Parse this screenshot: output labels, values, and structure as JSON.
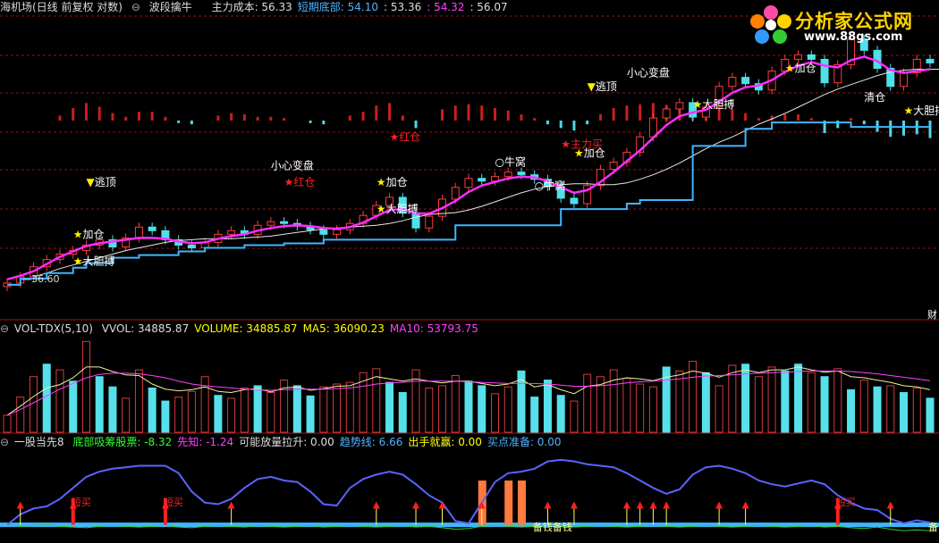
{
  "panel1": {
    "title": "海机场(日线 前复权 对数)",
    "indicator": "波段擒牛",
    "items": [
      {
        "label": "主力成本:",
        "value": "56.33",
        "color": "#dddddd"
      },
      {
        "label": "短期底部:",
        "value": "54.10",
        "color": "#4fb3ff"
      },
      {
        "label": "",
        "value": ": 53.36",
        "color": "#dddddd"
      },
      {
        "label": "",
        "value": ": 54.32",
        "color": "#ff40ff"
      },
      {
        "label": "",
        "value": ": 56.07",
        "color": "#dddddd"
      }
    ],
    "low_label": "36.60",
    "badge": "财"
  },
  "panel2": {
    "title": "VOL-TDX(5,10)",
    "items": [
      {
        "label": "VVOL:",
        "value": "34885.87",
        "color": "#dddddd"
      },
      {
        "label": "VOLUME:",
        "value": "34885.87",
        "color": "#ffff00"
      },
      {
        "label": "MA5:",
        "value": "36090.23",
        "color": "#ffff00"
      },
      {
        "label": "MA10:",
        "value": "53793.75",
        "color": "#ff40ff"
      }
    ]
  },
  "panel3": {
    "title": "一股当先8",
    "items": [
      {
        "label": "底部吸筹股票:",
        "value": "-8.32",
        "color": "#33ff33"
      },
      {
        "label": "先知:",
        "value": "-1.24",
        "color": "#ff40ff"
      },
      {
        "label": "可能放量拉升:",
        "value": "0.00",
        "color": "#dddddd"
      },
      {
        "label": "趋势线:",
        "value": "6.66",
        "color": "#4fb3ff"
      },
      {
        "label": "出手就赢:",
        "value": "0.00",
        "color": "#ffff00"
      },
      {
        "label": "买点准备:",
        "value": "0.00",
        "color": "#4fb3ff"
      }
    ]
  },
  "logo": {
    "name": "分析家公式网",
    "url": "www.88gs.com"
  },
  "chart_data": {
    "type": "line",
    "price": {
      "candles": [
        36.8,
        37.5,
        38.6,
        39.4,
        40.0,
        40.4,
        41.0,
        41.6,
        40.8,
        41.8,
        43.0,
        42.6,
        41.6,
        41.0,
        40.7,
        41.3,
        42.2,
        42.6,
        42.2,
        43.2,
        43.6,
        43.4,
        43.1,
        42.7,
        42.2,
        42.7,
        43.4,
        44.3,
        45.4,
        46.3,
        44.6,
        42.9,
        44.2,
        46.1,
        47.4,
        48.4,
        48.1,
        48.6,
        49.1,
        48.8,
        48.3,
        47.5,
        46.2,
        45.6,
        47.6,
        49.4,
        50.2,
        51.3,
        53.0,
        55.1,
        56.1,
        56.8,
        55.2,
        56.3,
        58.6,
        59.6,
        58.9,
        58.2,
        60.3,
        61.6,
        62.1,
        61.6,
        59.0,
        61.0,
        63.8,
        62.6,
        60.6,
        58.6,
        60.1,
        61.6,
        61.2
      ],
      "ma_magenta": [
        37.2,
        37.6,
        38.1,
        38.9,
        39.7,
        40.3,
        40.9,
        41.2,
        41.4,
        41.6,
        41.8,
        41.8,
        41.7,
        41.4,
        41.2,
        41.3,
        41.7,
        42.0,
        42.2,
        42.6,
        42.9,
        43.1,
        43.2,
        43.1,
        42.9,
        42.8,
        43.0,
        43.5,
        44.2,
        44.9,
        45.0,
        44.5,
        44.5,
        45.1,
        45.9,
        46.9,
        47.6,
        48.0,
        48.4,
        48.6,
        48.5,
        48.1,
        47.4,
        46.8,
        47.1,
        48.0,
        49.1,
        50.3,
        51.5,
        52.9,
        54.3,
        55.3,
        55.7,
        56.0,
        56.9,
        57.9,
        58.5,
        58.7,
        59.3,
        60.2,
        60.9,
        61.3,
        60.9,
        60.7,
        61.5,
        61.9,
        61.4,
        60.4,
        60.1,
        60.3,
        60.5
      ],
      "ma_white": [
        37.5,
        37.9,
        38.4,
        38.8,
        39.2,
        39.6,
        40.0,
        40.4,
        40.7,
        41.0,
        41.3,
        41.5,
        41.6,
        41.7,
        41.7,
        41.7,
        41.8,
        41.9,
        42.0,
        42.2,
        42.4,
        42.6,
        42.8,
        42.9,
        43.0,
        43.1,
        43.2,
        43.4,
        43.7,
        44.1,
        44.4,
        44.5,
        44.6,
        44.9,
        45.3,
        45.8,
        46.3,
        46.8,
        47.2,
        47.5,
        47.7,
        47.8,
        47.8,
        47.7,
        47.7,
        47.9,
        48.3,
        48.8,
        49.4,
        50.1,
        50.9,
        51.7,
        52.4,
        53.0,
        53.7,
        54.4,
        55.0,
        55.6,
        56.3,
        57.0,
        57.7,
        58.3,
        58.8,
        59.3,
        59.8,
        60.2,
        60.4,
        60.5,
        60.5,
        60.5,
        60.5
      ],
      "ma_white_start": 2,
      "bottom_line": [
        36.6,
        37.3,
        37.3,
        37.9,
        37.9,
        38.5,
        39.0,
        39.0,
        39.6,
        39.6,
        39.9,
        39.9,
        39.9,
        40.3,
        40.3,
        40.7,
        40.7,
        40.7,
        41.0,
        41.0,
        41.0,
        41.2,
        41.2,
        41.2,
        41.6,
        41.6,
        41.6,
        41.6,
        41.6,
        41.6,
        41.6,
        41.6,
        41.6,
        41.6,
        43.2,
        43.2,
        43.2,
        43.2,
        43.2,
        43.2,
        43.2,
        43.2,
        45.0,
        45.0,
        45.0,
        45.0,
        45.0,
        45.6,
        46.0,
        46.0,
        46.0,
        46.0,
        52.0,
        52.0,
        52.0,
        52.0,
        53.9,
        53.9,
        54.6,
        54.6,
        54.6,
        54.6,
        54.6,
        54.6,
        54.1,
        54.1,
        54.1,
        54.1,
        54.1,
        54.1,
        54.1
      ],
      "ylim": [
        35.5,
        66
      ]
    },
    "macd_bars": [
      0,
      0,
      0,
      0,
      0.4,
      1,
      1.4,
      1.1,
      0.6,
      0.3,
      0.7,
      0.7,
      0.3,
      -0.2,
      -0.3,
      0,
      0.4,
      0.6,
      0.5,
      0.3,
      0.3,
      0.2,
      0,
      -0.2,
      -0.3,
      0,
      0.4,
      0.7,
      1.2,
      1.4,
      0.4,
      -0.6,
      0,
      0.9,
      1.2,
      1.3,
      1.2,
      1.0,
      0.8,
      0.5,
      0.2,
      -0.3,
      -0.6,
      -0.8,
      -0.3,
      0.5,
      1,
      1.2,
      1.3,
      1.4,
      1.2,
      1.0,
      0.3,
      0.2,
      0.9,
      0.9,
      0.6,
      0.2,
      0.4,
      0.5,
      0.5,
      0.2,
      -1,
      -0.6,
      0.2,
      -0.3,
      -0.9,
      -1.3,
      -1.2,
      -1.1,
      -1.4
    ],
    "volume": {
      "values": [
        30000,
        62000,
        98000,
        120000,
        110000,
        90000,
        160000,
        98000,
        80000,
        60000,
        110000,
        78000,
        55000,
        62000,
        72000,
        98000,
        65000,
        60000,
        78000,
        82000,
        70000,
        92000,
        82000,
        64000,
        80000,
        85000,
        88000,
        105000,
        112000,
        88000,
        70000,
        110000,
        78000,
        82000,
        100000,
        90000,
        82000,
        68000,
        80000,
        108000,
        62000,
        92000,
        65000,
        55000,
        102000,
        98000,
        110000,
        95000,
        85000,
        80000,
        115000,
        108000,
        125000,
        105000,
        82000,
        118000,
        120000,
        98000,
        115000,
        108000,
        120000,
        105000,
        98000,
        112000,
        75000,
        92000,
        80000,
        82000,
        70000,
        78000,
        60000
      ],
      "up": [
        true,
        true,
        true,
        false,
        true,
        false,
        true,
        false,
        false,
        true,
        true,
        false,
        false,
        true,
        true,
        true,
        false,
        true,
        true,
        false,
        true,
        true,
        false,
        false,
        true,
        true,
        true,
        true,
        true,
        false,
        false,
        true,
        true,
        true,
        true,
        false,
        false,
        true,
        true,
        false,
        false,
        false,
        false,
        true,
        true,
        true,
        true,
        true,
        true,
        true,
        false,
        true,
        true,
        false,
        true,
        true,
        false,
        true,
        true,
        false,
        false,
        true,
        false,
        true,
        false,
        true,
        false,
        true,
        false,
        true,
        false
      ],
      "ma_yellow": [
        30000,
        46000,
        63000,
        78000,
        84000,
        96000,
        115000,
        115000,
        107000,
        101000,
        100000,
        85000,
        76000,
        73000,
        75000,
        80000,
        72000,
        70000,
        75000,
        77000,
        71000,
        78000,
        80000,
        74000,
        77000,
        81000,
        82000,
        90000,
        98000,
        94000,
        90000,
        94000,
        90000,
        87000,
        90000,
        90000,
        86000,
        82000,
        85000,
        93000,
        80000,
        84000,
        75000,
        68000,
        81000,
        84000,
        92000,
        96000,
        94000,
        91000,
        97000,
        101000,
        108000,
        104000,
        97000,
        105000,
        110000,
        105000,
        110000,
        110000,
        115000,
        110000,
        106000,
        108000,
        98000,
        96000,
        92000,
        88000,
        82000,
        80000,
        75000
      ],
      "ma_magenta": [
        30000,
        40000,
        52000,
        64000,
        76000,
        86000,
        96000,
        102000,
        104000,
        104000,
        103000,
        100000,
        96000,
        90000,
        85000,
        82000,
        80000,
        78000,
        76000,
        75000,
        74000,
        75000,
        76000,
        76000,
        76000,
        77000,
        78000,
        81000,
        85000,
        87000,
        88000,
        90000,
        90000,
        90000,
        90000,
        89000,
        88000,
        87000,
        86000,
        86000,
        86000,
        85000,
        83000,
        81000,
        81000,
        82000,
        84000,
        87000,
        89000,
        90000,
        92000,
        94000,
        97000,
        99000,
        100000,
        101000,
        103000,
        104000,
        105000,
        106000,
        107000,
        108000,
        108000,
        108000,
        107000,
        105000,
        103000,
        100000,
        97000,
        94000,
        91000
      ],
      "ylim": [
        0,
        170000
      ]
    },
    "oscillator": {
      "blue": [
        0,
        14,
        22,
        25,
        35,
        50,
        65,
        72,
        76,
        78,
        80,
        80,
        80,
        70,
        45,
        30,
        28,
        35,
        50,
        62,
        65,
        60,
        58,
        45,
        28,
        26,
        50,
        62,
        68,
        72,
        68,
        55,
        40,
        30,
        5,
        2,
        30,
        58,
        70,
        72,
        76,
        86,
        88,
        86,
        82,
        80,
        78,
        70,
        60,
        50,
        42,
        48,
        68,
        78,
        80,
        76,
        70,
        60,
        55,
        52,
        56,
        60,
        55,
        40,
        30,
        22,
        20,
        8,
        2,
        6,
        3
      ],
      "green": [
        0,
        -2,
        -1,
        0,
        -2,
        -3,
        -4,
        -2,
        -1,
        -2,
        -3,
        -2,
        -1,
        -3,
        -4,
        -2,
        -1,
        -2,
        -3,
        -1,
        -2,
        -3,
        -2,
        -1,
        -3,
        -2,
        -1,
        -2,
        -3,
        -2,
        -1,
        -3,
        -2,
        -4,
        -6,
        -5,
        -2,
        -1,
        -2,
        -3,
        -2,
        -1,
        -2,
        -3,
        -2,
        -1,
        -2,
        -3,
        -2,
        -1,
        -2,
        -3,
        -2,
        -1,
        -2,
        -3,
        -2,
        -1,
        -2,
        -3,
        -2,
        -1,
        -3,
        -2,
        -4,
        -5,
        -3,
        -6,
        -8,
        -7,
        -8
      ],
      "buy_arrows": [
        1,
        5,
        12,
        17,
        28,
        31,
        33,
        36,
        41,
        43,
        47,
        48,
        49,
        50,
        54,
        56,
        63,
        67
      ],
      "buy_labels": [
        {
          "i": 5,
          "text": "短买"
        },
        {
          "i": 12,
          "text": "短买"
        },
        {
          "i": 63,
          "text": "短买"
        }
      ],
      "orange_bars": [
        36,
        38,
        39
      ],
      "ylim": [
        -15,
        100
      ]
    },
    "price_annotations": [
      {
        "i": 5,
        "v": 41.8,
        "text": "加仓",
        "color": "#ffffff"
      },
      {
        "i": 5,
        "v": 38.8,
        "text": "大胆搏",
        "color": "#ffffff"
      },
      {
        "i": 6,
        "v": 47.6,
        "text": "逃顶",
        "color": "#ffffff"
      },
      {
        "i": 20,
        "v": 49.4,
        "text": "小心变盘",
        "color": "#ffffff"
      },
      {
        "i": 21,
        "v": 47.6,
        "text": "红仓",
        "color": "#ff2020"
      },
      {
        "i": 28,
        "v": 47.6,
        "text": "加仓",
        "color": "#ffffff"
      },
      {
        "i": 28,
        "v": 44.6,
        "text": "大胆搏",
        "color": "#ffffff"
      },
      {
        "i": 29,
        "v": 52.6,
        "text": "红仓",
        "color": "#ff2020"
      },
      {
        "i": 37,
        "v": 49.8,
        "text": "牛窝",
        "color": "#ffffff"
      },
      {
        "i": 40,
        "v": 47.2,
        "text": "牛窝",
        "color": "#ffffff"
      },
      {
        "i": 43,
        "v": 50.8,
        "text": "加仓",
        "color": "#ffffff"
      },
      {
        "i": 42,
        "v": 51.8,
        "text": "主力买",
        "color": "#ff2020"
      },
      {
        "i": 44,
        "v": 58.2,
        "text": "逃顶",
        "color": "#ffffff"
      },
      {
        "i": 47,
        "v": 59.7,
        "text": "小心变盘",
        "color": "#ffffff"
      },
      {
        "i": 52,
        "v": 56.2,
        "text": "大胆搏",
        "color": "#ffffff"
      },
      {
        "i": 59,
        "v": 60.2,
        "text": "加仓",
        "color": "#ffffff"
      },
      {
        "i": 65,
        "v": 57.0,
        "text": "清仓",
        "color": "#ffffff"
      },
      {
        "i": 68,
        "v": 55.5,
        "text": "大胆搏",
        "color": "#ffffff"
      }
    ],
    "bottom_text": [
      {
        "i": 40,
        "text": "备钱备钱"
      },
      {
        "i": 70,
        "text": "备"
      }
    ]
  }
}
